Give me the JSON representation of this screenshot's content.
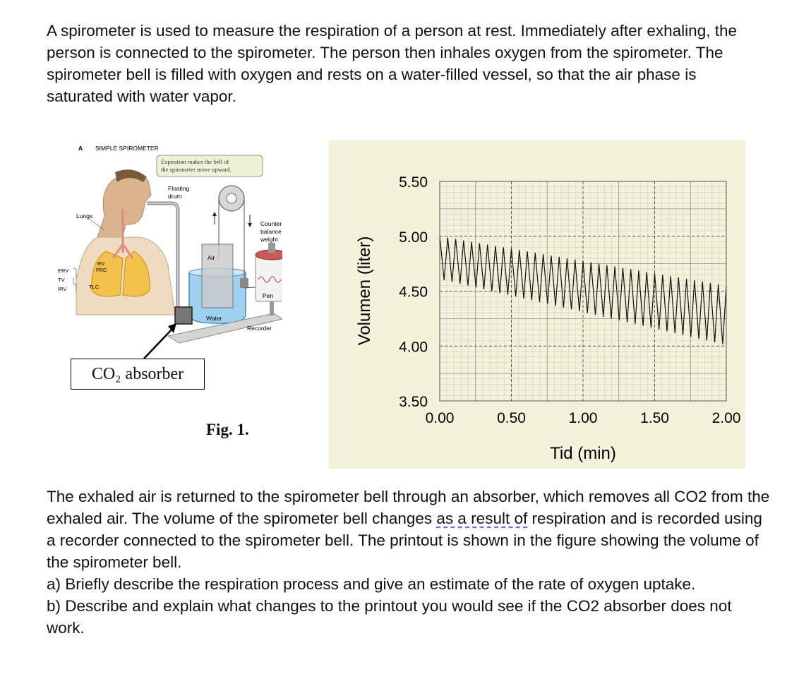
{
  "intro_text": "A spirometer is used to measure the respiration of a person at rest. Immediately after exhaling, the person is connected to the spirometer. The person then inhales oxygen from the spirometer. The spirometer bell is filled with oxygen and rests on a water-filled vessel, so that the air phase is saturated with water vapor.",
  "figure": {
    "panel_letter": "A",
    "panel_title": "SIMPLE SPIROMETER",
    "callout_line1": "Expiration makes the bell of",
    "callout_line2": "the spirometer move upward.",
    "floating_line1": "Floating",
    "floating_line2": "drum",
    "lungs": "Lungs",
    "counter_line1": "Counter-",
    "counter_line2": "balance",
    "counter_line3": "weight",
    "air": "Air",
    "pen": "Pen",
    "water": "Water",
    "recorder": "Recorder",
    "rv": "RV",
    "frc": "FRC",
    "tlc": "TLC",
    "erv": "ERV",
    "tv": "TV",
    "irv": "IRV",
    "absorber": "CO₂ absorber",
    "caption": "Fig. 1."
  },
  "body_text": {
    "p1_before": "The exhaled air is returned to the spirometer bell through an absorber, which removes all CO2 from the exhaled air. The volume of the spirometer bell changes ",
    "p1_underlined": "as a result of",
    "p1_after": " respiration and is recorded using a recorder connected to the spirometer bell. The printout is shown in the figure showing the volume of the spirometer bell.",
    "qa": "a) Briefly describe the respiration process and give an estimate of the rate of oxygen uptake.",
    "qb": "b) Describe and explain what changes to the printout you would see if the CO2 absorber does not work."
  },
  "chart_data": {
    "type": "line",
    "xlabel": "Tid (min)",
    "ylabel": "Volumen (liter)",
    "xlim": [
      0,
      2
    ],
    "ylim": [
      3.5,
      5.5
    ],
    "x_ticks": [
      "0.00",
      "0.50",
      "1.00",
      "1.50",
      "2.00"
    ],
    "y_ticks": [
      "5.50",
      "5.00",
      "4.50",
      "4.00",
      "3.50"
    ],
    "grid": true,
    "breaths": 36,
    "peak_start": 5.0,
    "peak_end": 4.55,
    "trough_start": 4.6,
    "trough_end": 4.0,
    "background": "#f5f2dc",
    "line_color": "#111111"
  }
}
